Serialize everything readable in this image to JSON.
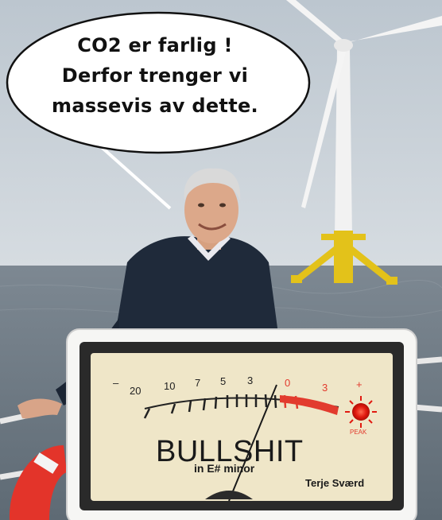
{
  "speech_bubble": {
    "lines": [
      "CO2 er farlig !",
      "Derfor trenger vi",
      "massevis av dette."
    ]
  },
  "vu_meter": {
    "scale_labels": [
      "–",
      "20",
      "10",
      "7",
      "5",
      "3",
      "0",
      "3",
      "+"
    ],
    "peak_label": "PEAK",
    "brand_label": "BULLSHIT",
    "sub_label": "in E# minor",
    "signature": "Terje Sværd"
  },
  "colors": {
    "sky": "#c9d1d8",
    "sea": "#6f7b85",
    "turbine_base": "#e3c21a",
    "meter_face": "#efe6c8",
    "meter_red": "#e23b2e",
    "jacket": "#1f2a3a"
  }
}
